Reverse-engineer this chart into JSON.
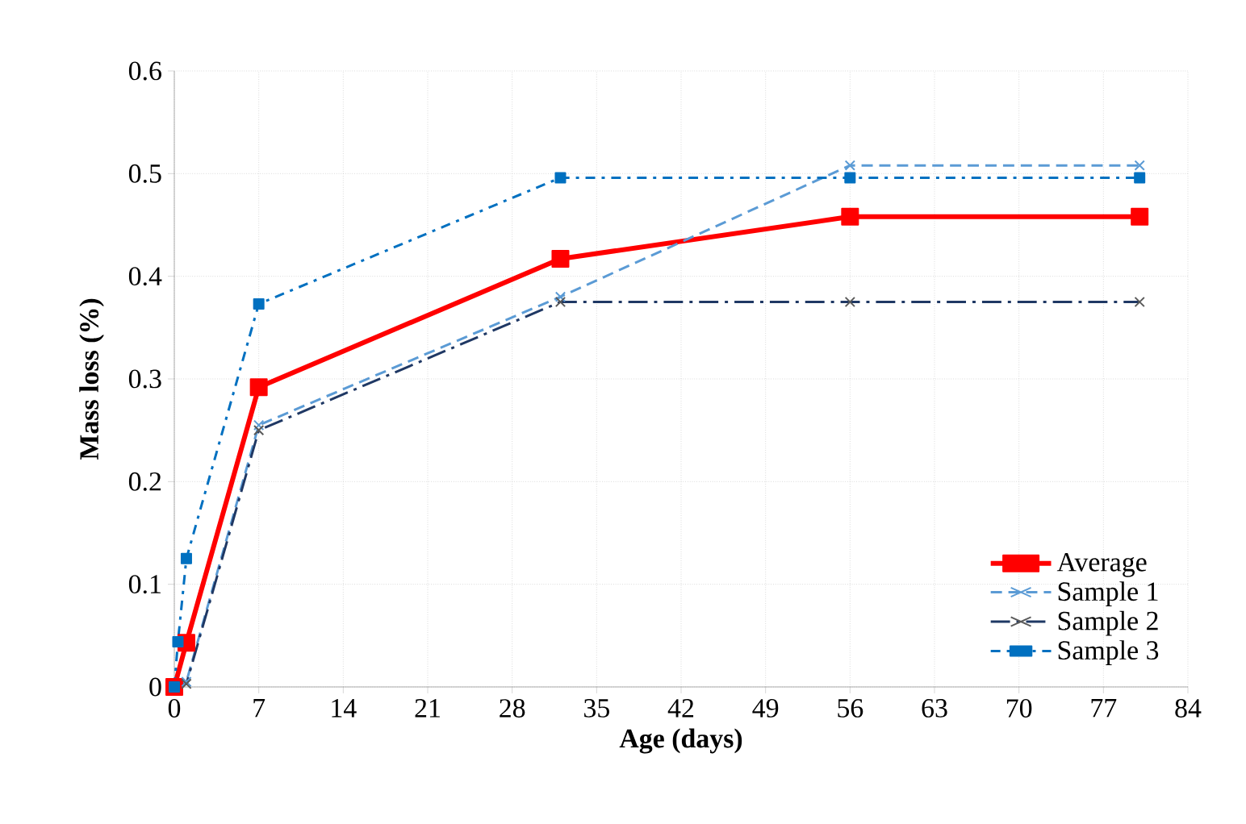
{
  "chart_data": {
    "type": "line",
    "xlabel": "Age (days)",
    "ylabel": "Mass loss (%)",
    "xlim": [
      0,
      84
    ],
    "ylim": [
      0,
      0.6
    ],
    "xticks": [
      0,
      7,
      14,
      21,
      28,
      35,
      42,
      49,
      56,
      63,
      70,
      77,
      84
    ],
    "yticks": [
      0,
      0.1,
      0.2,
      0.3,
      0.4,
      0.5,
      0.6
    ],
    "grid": true,
    "legend": "bottom right",
    "series": [
      {
        "name": "Average",
        "color": "#ff0000",
        "marker": "square",
        "line_style": "solid",
        "x": [
          0,
          1,
          7,
          32,
          56,
          80
        ],
        "values": [
          0,
          0.043,
          0.292,
          0.417,
          0.458,
          0.458
        ]
      },
      {
        "name": "Sample 1",
        "color": "#5b9bd5",
        "marker": "cross",
        "line_style": "dashed",
        "x": [
          0,
          1,
          7,
          32,
          56,
          80
        ],
        "values": [
          0,
          0.005,
          0.255,
          0.38,
          0.508,
          0.508
        ]
      },
      {
        "name": "Sample 2",
        "color": "#1f3864",
        "marker": "cross",
        "line_style": "dashdot",
        "x": [
          0,
          1,
          7,
          32,
          56,
          80
        ],
        "values": [
          0,
          0.003,
          0.25,
          0.375,
          0.375,
          0.375
        ]
      },
      {
        "name": "Sample 3",
        "color": "#0070c0",
        "marker": "square",
        "line_style": "dashdotdot",
        "x": [
          0,
          0.3,
          1,
          7,
          32,
          56,
          80
        ],
        "values": [
          0,
          0.044,
          0.125,
          0.373,
          0.496,
          0.496,
          0.496
        ]
      }
    ]
  }
}
